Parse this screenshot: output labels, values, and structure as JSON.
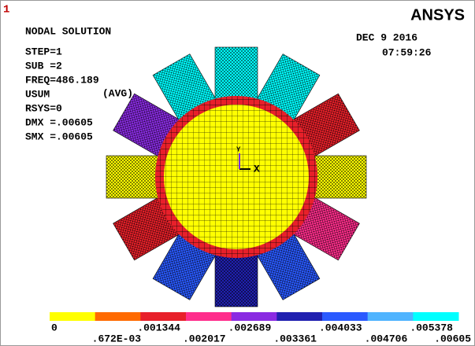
{
  "window_label": "1",
  "logo": "ANSYS",
  "title": "NODAL SOLUTION",
  "info": [
    "STEP=1",
    "SUB =2",
    "FREQ=486.189",
    "USUM",
    "RSYS=0",
    "DMX =.00605",
    "SMX =.00605"
  ],
  "avg": "(AVG)",
  "date": "DEC  9 2016",
  "time": "07:59:26",
  "triad": {
    "x": "X",
    "y": "Y"
  },
  "legend": {
    "colors": [
      "#ffff00",
      "#ff6a00",
      "#e8202a",
      "#ff2d8c",
      "#8a2be2",
      "#2020b0",
      "#2a5aff",
      "#4fb4ff",
      "#00ffff"
    ],
    "labels_top": [
      "0",
      ".001344",
      ".002689",
      ".004033",
      ".005378"
    ],
    "labels_bottom": [
      ".672E-03",
      ".002017",
      ".003361",
      ".004706",
      ".00605"
    ]
  }
}
